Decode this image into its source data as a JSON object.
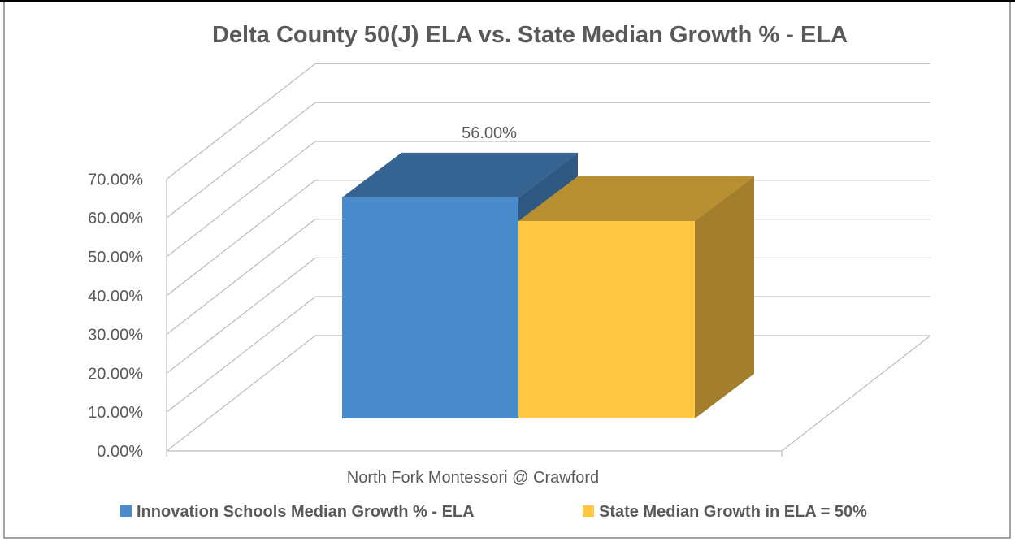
{
  "chart_data": {
    "type": "bar",
    "title": "Delta County 50(J) ELA vs. State Median Growth % - ELA",
    "categories": [
      "North Fork Montessori @ Crawford"
    ],
    "series": [
      {
        "name": "Innovation Schools Median Growth % - ELA",
        "values": [
          56.0
        ],
        "color": "#4a8bcb"
      },
      {
        "name": "State Median Growth in ELA = 50%",
        "values": [
          50.0
        ],
        "color": "#ffc744"
      }
    ],
    "data_labels": [
      "56.00%",
      ""
    ],
    "ylim": [
      0,
      70
    ],
    "y_ticks": [
      "0.00%",
      "10.00%",
      "20.00%",
      "30.00%",
      "40.00%",
      "50.00%",
      "60.00%",
      "70.00%"
    ],
    "xlabel": "",
    "ylabel": "",
    "grid": true,
    "legend_position": "bottom",
    "style": "3d-clustered-column"
  }
}
